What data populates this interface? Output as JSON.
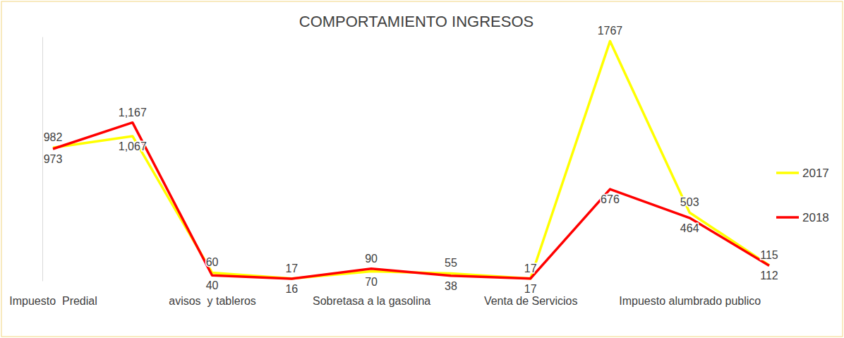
{
  "chart_data": {
    "type": "line",
    "title": "COMPORTAMIENTO INGRESOS",
    "categories": [
      "Impuesto  Predial",
      null,
      "avisos  y tableros",
      null,
      "Sobretasa a la gasolina",
      null,
      "Venta de Servicios",
      null,
      "Impuesto alumbrado publico",
      null
    ],
    "series": [
      {
        "name": "2017",
        "color": "#ffff00",
        "values": [
          982,
          1067,
          60,
          17,
          70,
          55,
          17,
          1767,
          503,
          115
        ],
        "value_labels": [
          "982",
          "1,067",
          "60",
          "17",
          "70",
          "55",
          "17",
          "1767",
          "503",
          "115"
        ]
      },
      {
        "name": "2018",
        "color": "#ff0000",
        "values": [
          973,
          1167,
          40,
          16,
          90,
          38,
          17,
          676,
          464,
          112
        ],
        "value_labels": [
          "973",
          "1,167",
          "40",
          "16",
          "90",
          "38",
          "17",
          "676",
          "464",
          "112"
        ]
      }
    ],
    "ylim": [
      0,
      1800
    ],
    "yticks": [],
    "tick_labels": "x",
    "data_labels": true,
    "legend": "right",
    "grid": false
  }
}
